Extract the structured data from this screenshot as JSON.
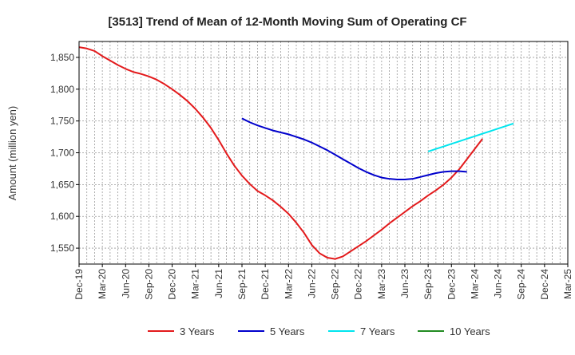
{
  "chart_data": {
    "type": "line",
    "title": "[3513]  Trend of Mean of 12-Month Moving Sum of Operating CF",
    "xlabel": "",
    "ylabel": "Amount (million yen)",
    "ylim": [
      1525,
      1875
    ],
    "yticks": [
      1550,
      1600,
      1650,
      1700,
      1750,
      1800,
      1850
    ],
    "ytick_labels": [
      "1,550",
      "1,600",
      "1,650",
      "1,700",
      "1,750",
      "1,800",
      "1,850"
    ],
    "grid": true,
    "legend_position": "bottom",
    "x_axis": {
      "start": {
        "year": 2019,
        "month": 12
      },
      "end": {
        "year": 2025,
        "month": 3
      },
      "tick_step_months": 3,
      "tick_labels": [
        "Dec-19",
        "Mar-20",
        "Jun-20",
        "Sep-20",
        "Dec-20",
        "Mar-21",
        "Jun-21",
        "Sep-21",
        "Dec-21",
        "Mar-22",
        "Jun-22",
        "Sep-22",
        "Dec-22",
        "Mar-23",
        "Jun-23",
        "Sep-23",
        "Dec-23",
        "Mar-24",
        "Jun-24",
        "Sep-24",
        "Dec-24",
        "Mar-25"
      ]
    },
    "series": [
      {
        "name": "3 Years",
        "color": "#e31a1c",
        "start": {
          "year": 2019,
          "month": 12
        },
        "values": [
          1866,
          1864,
          1860,
          1852,
          1845,
          1838,
          1832,
          1827,
          1824,
          1820,
          1815,
          1808,
          1800,
          1791,
          1781,
          1769,
          1755,
          1739,
          1720,
          1699,
          1680,
          1664,
          1651,
          1640,
          1633,
          1625,
          1615,
          1604,
          1590,
          1574,
          1555,
          1542,
          1535,
          1533,
          1537,
          1545,
          1553,
          1561,
          1570,
          1579,
          1589,
          1598,
          1607,
          1616,
          1624,
          1633,
          1641,
          1650,
          1661,
          1674,
          1690,
          1706,
          1722
        ]
      },
      {
        "name": "5 Years",
        "color": "#0000cc",
        "start": {
          "year": 2021,
          "month": 9
        },
        "values": [
          1754,
          1748,
          1743,
          1739,
          1735,
          1732,
          1729,
          1725,
          1721,
          1716,
          1710,
          1704,
          1697,
          1690,
          1683,
          1676,
          1670,
          1665,
          1661,
          1659,
          1658,
          1658,
          1659,
          1662,
          1665,
          1668,
          1670,
          1671,
          1671,
          1670
        ]
      },
      {
        "name": "7 Years",
        "color": "#00e5ee",
        "start": {
          "year": 2023,
          "month": 9
        },
        "values": [
          1702,
          1706,
          1710,
          1714,
          1718,
          1722,
          1726,
          1730,
          1734,
          1738,
          1742,
          1746
        ]
      },
      {
        "name": "10 Years",
        "color": "#228b22",
        "start": {
          "year": 2025,
          "month": 3
        },
        "values": []
      }
    ]
  }
}
